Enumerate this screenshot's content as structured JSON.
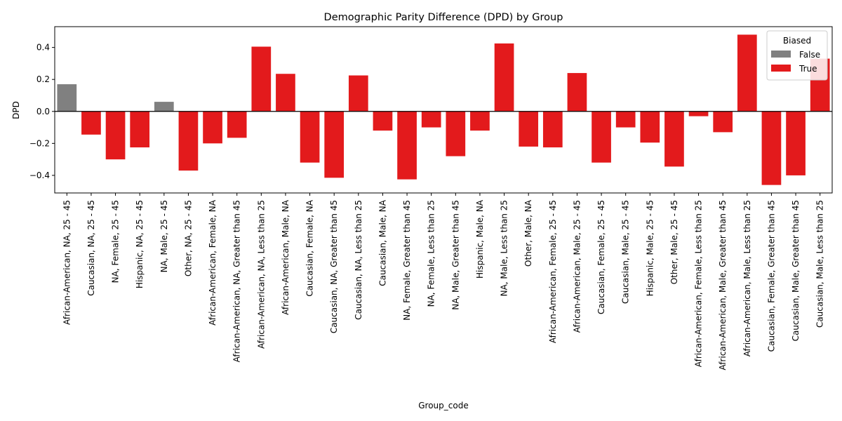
{
  "chart_data": {
    "type": "bar",
    "title": "Demographic Parity Difference (DPD) by Group",
    "xlabel": "Group_code",
    "ylabel": "DPD",
    "ylim": [
      -0.51,
      0.53
    ],
    "yticks": [
      -0.4,
      -0.2,
      0.0,
      0.2,
      0.4
    ],
    "ytick_labels": [
      "−0.4",
      "−0.2",
      "0.0",
      "0.2",
      "0.4"
    ],
    "grid": false,
    "zero_line": true,
    "legend": {
      "title": "Biased",
      "placement": "top-right",
      "entries": [
        {
          "label": "False",
          "color": "#808080"
        },
        {
          "label": "True",
          "color": "#e31a1c"
        }
      ]
    },
    "colors": {
      "False": "#808080",
      "True": "#e31a1c"
    },
    "categories": [
      "African-American, NA, 25 - 45",
      "Caucasian, NA, 25 - 45",
      "NA, Female, 25 - 45",
      "Hispanic, NA, 25 - 45",
      "NA, Male, 25 - 45",
      "Other, NA, 25 - 45",
      "African-American, Female, NA",
      "African-American, NA, Greater than 45",
      "African-American, NA, Less than 25",
      "African-American, Male, NA",
      "Caucasian, Female, NA",
      "Caucasian, NA, Greater than 45",
      "Caucasian, NA, Less than 25",
      "Caucasian, Male, NA",
      "NA, Female, Greater than 45",
      "NA, Female, Less than 25",
      "NA, Male, Greater than 45",
      "Hispanic, Male, NA",
      "NA, Male, Less than 25",
      "Other, Male, NA",
      "African-American, Female, 25 - 45",
      "African-American, Male, 25 - 45",
      "Caucasian, Female, 25 - 45",
      "Caucasian, Male, 25 - 45",
      "Hispanic, Male, 25 - 45",
      "Other, Male, 25 - 45",
      "African-American, Female, Less than 25",
      "African-American, Male, Greater than 45",
      "African-American, Male, Less than 25",
      "Caucasian, Female, Greater than 45",
      "Caucasian, Male, Greater than 45",
      "Caucasian, Male, Less than 25"
    ],
    "values": [
      0.17,
      -0.145,
      -0.3,
      -0.225,
      0.06,
      -0.37,
      -0.2,
      -0.165,
      0.405,
      0.235,
      -0.32,
      -0.415,
      0.225,
      -0.12,
      -0.425,
      -0.1,
      -0.28,
      -0.12,
      0.425,
      -0.22,
      -0.225,
      0.24,
      -0.32,
      -0.1,
      -0.195,
      -0.345,
      -0.03,
      -0.13,
      0.48,
      -0.46,
      -0.4,
      0.33
    ],
    "biased": [
      false,
      true,
      true,
      true,
      false,
      true,
      true,
      true,
      true,
      true,
      true,
      true,
      true,
      true,
      true,
      true,
      true,
      true,
      true,
      true,
      true,
      true,
      true,
      true,
      true,
      true,
      true,
      true,
      true,
      true,
      true,
      true
    ]
  }
}
